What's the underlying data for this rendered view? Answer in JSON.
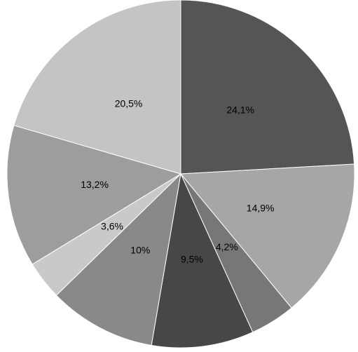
{
  "chart_data": {
    "type": "pie",
    "values": [
      24.1,
      14.9,
      4.2,
      9.5,
      10,
      3.6,
      13.2,
      20.5
    ],
    "value_labels": [
      "24,1%",
      "14,9%",
      "4,2%",
      "9,5%",
      "10%",
      "3,6%",
      "13,2%",
      "20,5%"
    ],
    "colors": [
      "#555555",
      "#a6a6a6",
      "#777777",
      "#474747",
      "#898989",
      "#c9c9c9",
      "#9d9d9d",
      "#c4c4c4"
    ]
  }
}
